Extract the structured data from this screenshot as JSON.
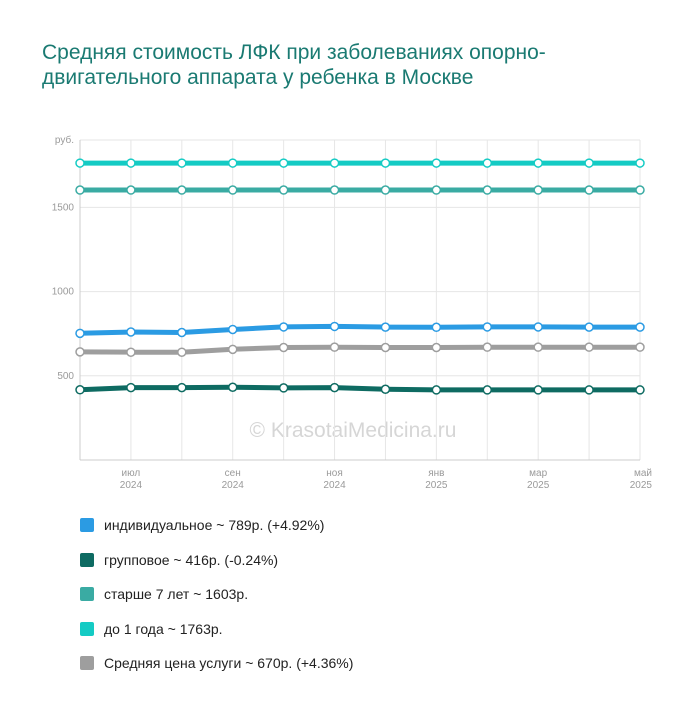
{
  "title": "Средняя стоимость ЛФК при заболеваниях опорно-двигательного аппарата у ребенка в Москве",
  "watermark": "© KrasotaiMedicina.ru",
  "chart_data": {
    "type": "line",
    "title": "Средняя стоимость ЛФК при заболеваниях опорно-двигательного аппарата у ребенка в Москве",
    "ylabel": "руб.",
    "ylim": [
      0,
      1900
    ],
    "y_ticks": [
      500,
      1000,
      1500
    ],
    "grid": true,
    "legend_position": "bottom",
    "x_labels": [
      {
        "index": 1,
        "month": "июл",
        "year": "2024"
      },
      {
        "index": 3,
        "month": "сен",
        "year": "2024"
      },
      {
        "index": 5,
        "month": "ноя",
        "year": "2024"
      },
      {
        "index": 7,
        "month": "янв",
        "year": "2025"
      },
      {
        "index": 9,
        "month": "мар",
        "year": "2025"
      },
      {
        "index": 11,
        "month": "май",
        "year": "2025"
      }
    ],
    "series": [
      {
        "name": "до 1 года",
        "color": "#14cbc4",
        "values": [
          1763,
          1763,
          1763,
          1763,
          1763,
          1763,
          1763,
          1763,
          1763,
          1763,
          1763,
          1763
        ]
      },
      {
        "name": "старше 7 лет",
        "color": "#3aaba3",
        "values": [
          1603,
          1603,
          1603,
          1603,
          1603,
          1603,
          1603,
          1603,
          1603,
          1603,
          1603,
          1603
        ]
      },
      {
        "name": "индивидуальное",
        "color": "#2b9be3",
        "values": [
          752,
          760,
          757,
          775,
          790,
          793,
          789,
          788,
          790,
          790,
          789,
          789
        ]
      },
      {
        "name": "Средняя цена услуги",
        "color": "#9e9e9e",
        "values": [
          642,
          640,
          640,
          657,
          668,
          670,
          668,
          668,
          670,
          670,
          670,
          670
        ]
      },
      {
        "name": "групповое",
        "color": "#0e6b62",
        "values": [
          417,
          430,
          430,
          432,
          428,
          430,
          420,
          416,
          416,
          416,
          416,
          416
        ]
      }
    ]
  },
  "legend": [
    {
      "label": "индивидуальное ~ 789р. (+4.92%)",
      "color": "#2b9be3"
    },
    {
      "label": "групповое ~ 416р. (-0.24%)",
      "color": "#0e6b62"
    },
    {
      "label": "старше 7 лет ~ 1603р.",
      "color": "#3aaba3"
    },
    {
      "label": "до 1 года ~ 1763р.",
      "color": "#14cbc4"
    },
    {
      "label": "Средняя цена услуги ~ 670р. (+4.36%)",
      "color": "#9e9e9e"
    }
  ]
}
